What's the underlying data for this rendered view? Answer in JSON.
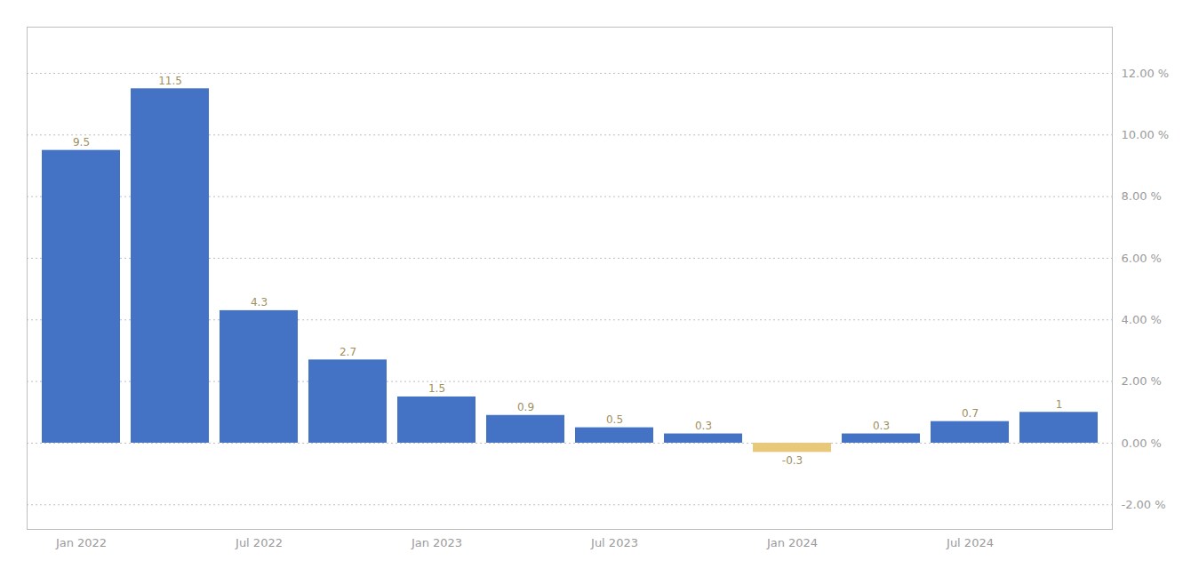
{
  "chart_data": {
    "type": "bar",
    "categories": [
      "Jan 2022",
      null,
      "Jul 2022",
      null,
      "Jan 2023",
      null,
      "Jul 2023",
      null,
      "Jan 2024",
      null,
      "Jul 2024",
      null
    ],
    "values": [
      9.5,
      11.5,
      4.3,
      2.7,
      1.5,
      0.9,
      0.5,
      0.3,
      -0.3,
      0.3,
      0.7,
      1.0
    ],
    "colors": [
      "#4472C4",
      "#4472C4",
      "#4472C4",
      "#4472C4",
      "#4472C4",
      "#4472C4",
      "#4472C4",
      "#4472C4",
      "#E8C97A",
      "#4472C4",
      "#4472C4",
      "#4472C4"
    ],
    "ylim": [
      -2.8,
      13.5
    ],
    "yticks": [
      {
        "value": -2,
        "label": "-2.00 %"
      },
      {
        "value": 0,
        "label": "0.00 %"
      },
      {
        "value": 2,
        "label": "2.00 %"
      },
      {
        "value": 4,
        "label": "4.00 %"
      },
      {
        "value": 6,
        "label": "6.00 %"
      },
      {
        "value": 8,
        "label": "8.00 %"
      },
      {
        "value": 10,
        "label": "10.00 %"
      },
      {
        "value": 12,
        "label": "12.00 %"
      }
    ],
    "grid": true,
    "data_labels": true
  }
}
